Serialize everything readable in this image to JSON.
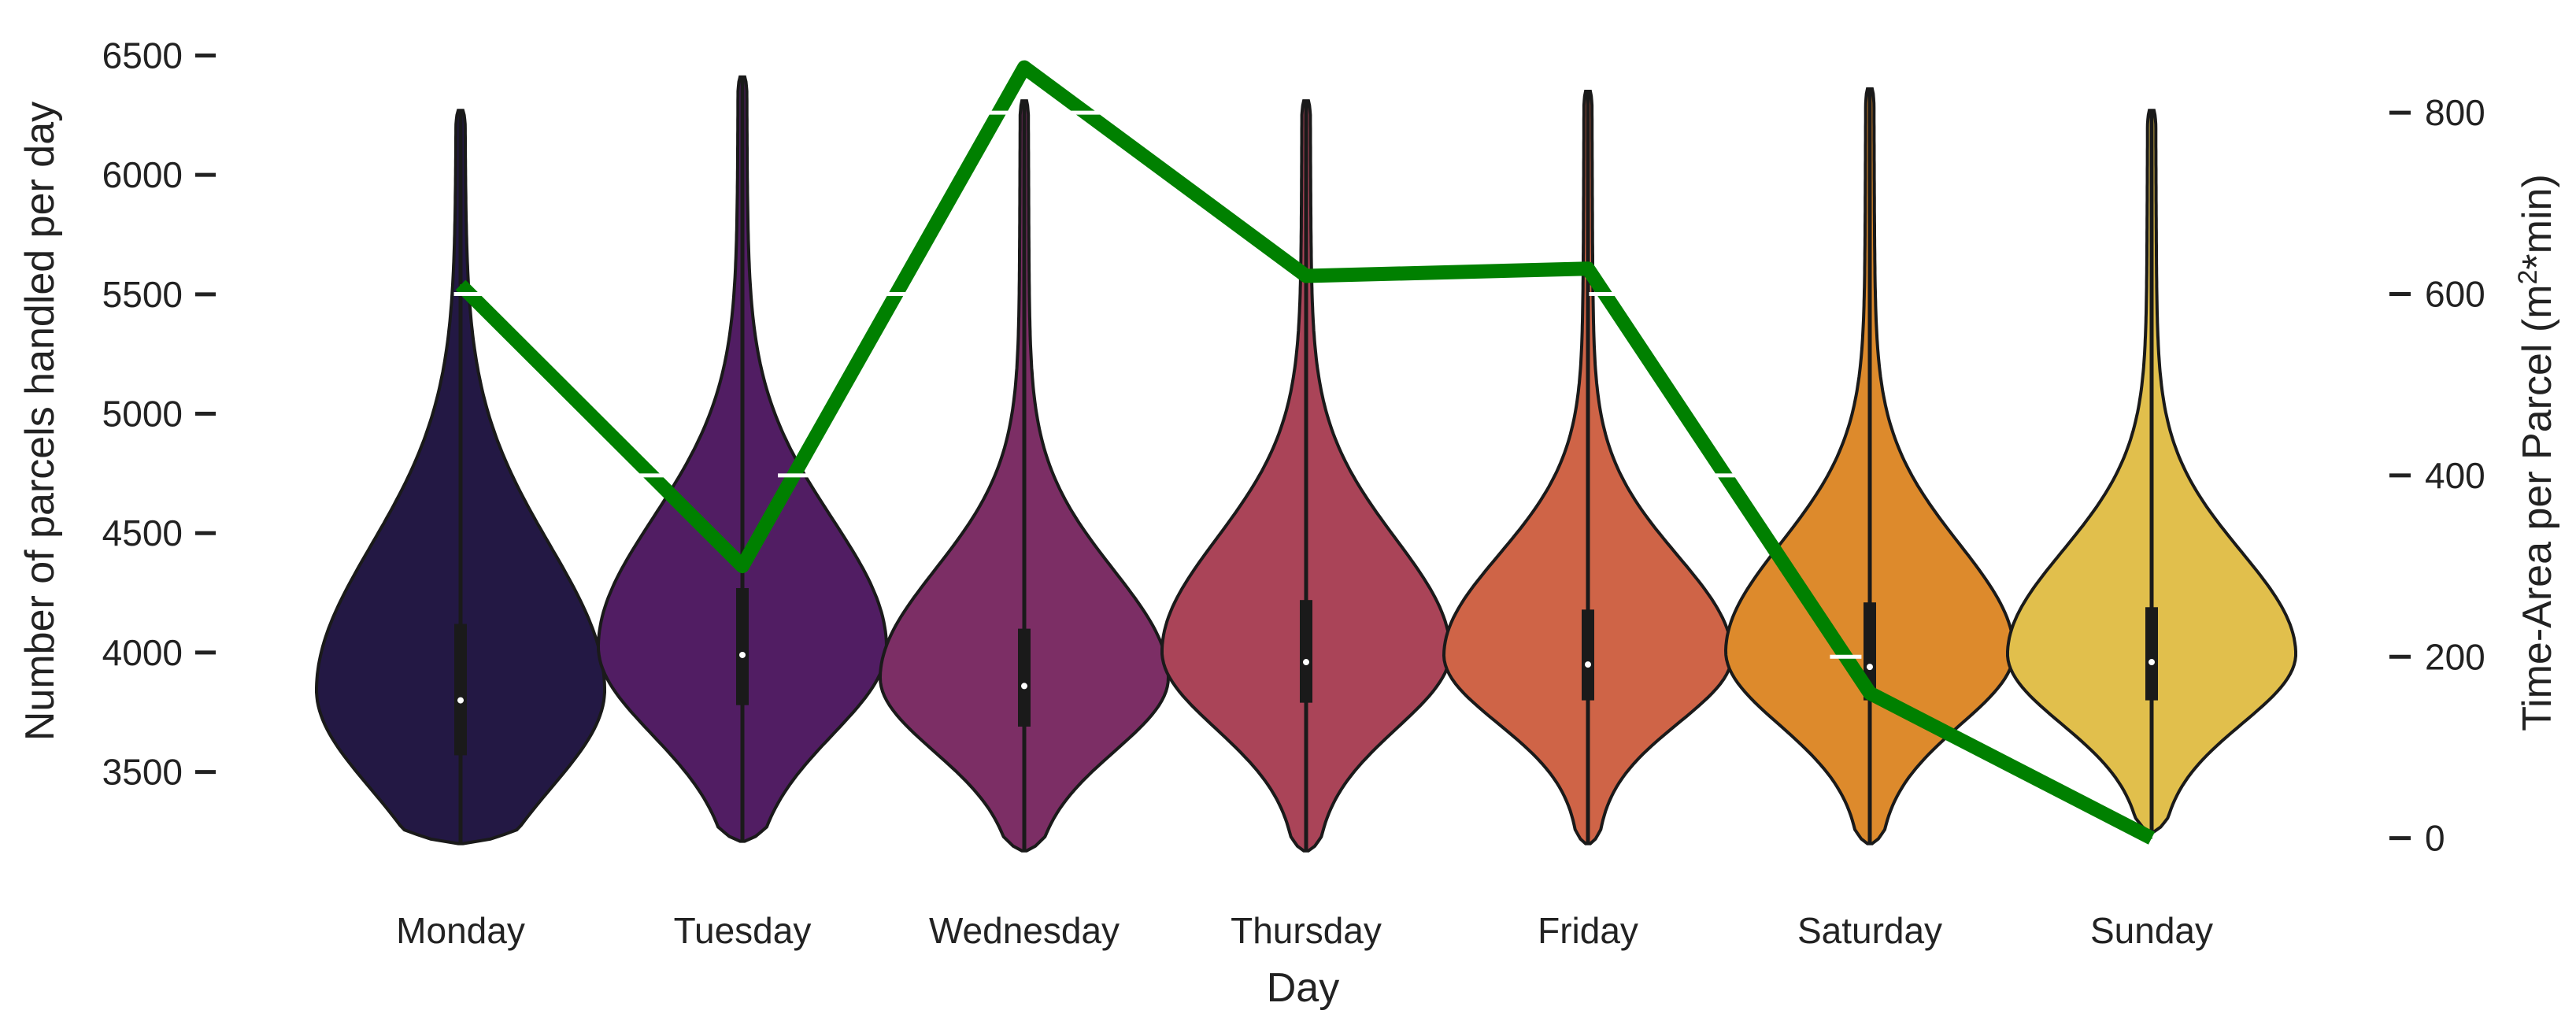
{
  "chart_data": {
    "type": "violin",
    "title": "",
    "xlabel": "Day",
    "ylabel_left": "Number of parcels handled per day",
    "ylabel_right_parts": [
      "Time-Area per Parcel (m",
      "2",
      "*min)"
    ],
    "categories": [
      "Monday",
      "Tuesday",
      "Wednesday",
      "Thursday",
      "Friday",
      "Saturday",
      "Sunday"
    ],
    "y_left": {
      "ticks": [
        3500,
        4000,
        4500,
        5000,
        5500,
        6000,
        6500
      ],
      "tick_labels": [
        "3500",
        "4000",
        "4500",
        "5000",
        "5500",
        "6000",
        "6500"
      ],
      "range": [
        3090,
        6640
      ]
    },
    "y_right": {
      "ticks": [
        0,
        200,
        400,
        600,
        800
      ],
      "tick_labels": [
        "0",
        "200",
        "400",
        "600",
        "800"
      ],
      "range": [
        -35,
        900
      ]
    },
    "violins": [
      {
        "day": "Monday",
        "color": "#231844",
        "min": 3200,
        "max": 6270,
        "q1": 3570,
        "median": 3800,
        "q3": 4120,
        "whisker_low": 3380,
        "whisker_high": 4980
      },
      {
        "day": "Tuesday",
        "color": "#511d63",
        "min": 3210,
        "max": 6410,
        "q1": 3780,
        "median": 3990,
        "q3": 4270,
        "whisker_low": 3440,
        "whisker_high": 4980
      },
      {
        "day": "Wednesday",
        "color": "#7c2e65",
        "min": 3170,
        "max": 6310,
        "q1": 3690,
        "median": 3860,
        "q3": 4100,
        "whisker_low": 3340,
        "whisker_high": 4640
      },
      {
        "day": "Thursday",
        "color": "#aa4458",
        "min": 3170,
        "max": 6310,
        "q1": 3790,
        "median": 3960,
        "q3": 4220,
        "whisker_low": 3370,
        "whisker_high": 4820
      },
      {
        "day": "Friday",
        "color": "#cf6447",
        "min": 3200,
        "max": 6350,
        "q1": 3800,
        "median": 3950,
        "q3": 4180,
        "whisker_low": 3390,
        "whisker_high": 4700
      },
      {
        "day": "Saturday",
        "color": "#dd8a2c",
        "min": 3200,
        "max": 6360,
        "q1": 3800,
        "median": 3940,
        "q3": 4210,
        "whisker_low": 3400,
        "whisker_high": 4770
      },
      {
        "day": "Sunday",
        "color": "#e1bf4c",
        "min": 3250,
        "max": 6270,
        "q1": 3800,
        "median": 3960,
        "q3": 4190,
        "whisker_low": 3400,
        "whisker_high": 4560
      }
    ],
    "line_series": {
      "color": "#008000",
      "axis": "right",
      "values": [
        610,
        300,
        850,
        620,
        628,
        160,
        0
      ]
    },
    "grid": false,
    "legend": "none"
  }
}
